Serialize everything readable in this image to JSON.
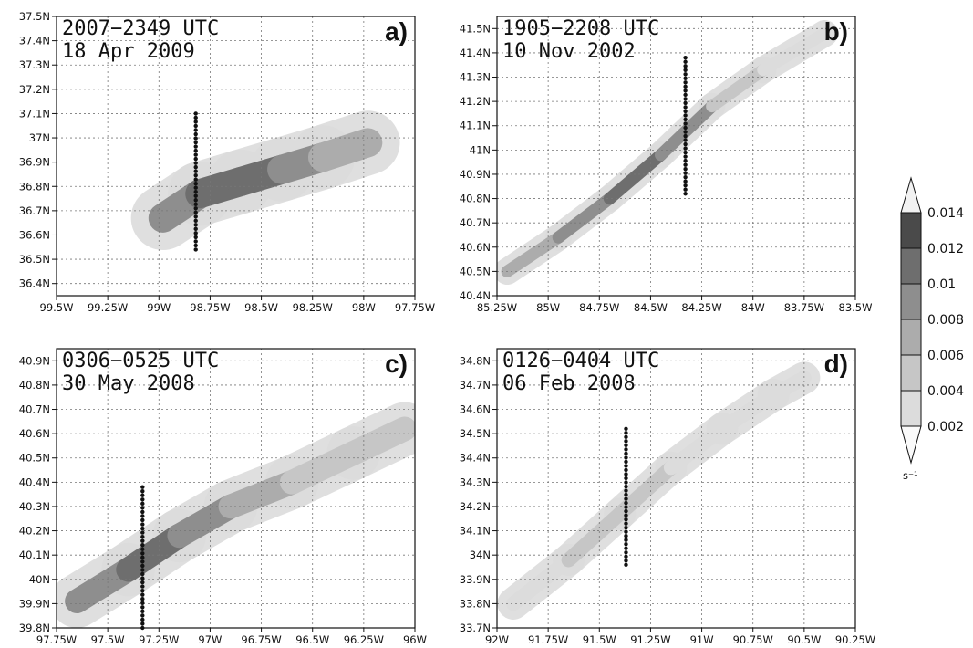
{
  "palette": {
    "levels": [
      0.002,
      0.004,
      0.006,
      0.008,
      0.01,
      0.012,
      0.014
    ],
    "fill_colors": [
      "#ececec",
      "#dcdcdc",
      "#c6c6c6",
      "#acacac",
      "#8e8e8e",
      "#6e6e6e",
      "#4a4a4a",
      "#2e2e2e"
    ]
  },
  "colorbar": {
    "labels": [
      "0.014",
      "0.012",
      "0.01",
      "0.008",
      "0.006",
      "0.004",
      "0.002"
    ],
    "unit": "s⁻¹"
  },
  "panels": [
    {
      "id": "a",
      "title_line1": "2007−2349 UTC",
      "title_line2": "18 Apr 2009",
      "letter": "a)",
      "lon_range": [
        -99.5,
        -97.75
      ],
      "lat_range": [
        36.35,
        37.5
      ],
      "x_ticks": [
        -99.5,
        -99.25,
        -99.0,
        -98.75,
        -98.5,
        -98.25,
        -98.0,
        -97.75
      ],
      "x_labels": [
        "99.5W",
        "99.25W",
        "99W",
        "98.75W",
        "98.5W",
        "98.25W",
        "98W",
        "97.75W"
      ],
      "y_ticks": [
        36.4,
        36.5,
        36.6,
        36.7,
        36.8,
        36.9,
        37.0,
        37.1,
        37.2,
        37.3,
        37.4,
        37.5
      ],
      "y_labels": [
        "36.4N",
        "36.5N",
        "36.6N",
        "36.7N",
        "36.8N",
        "36.9N",
        "37N",
        "37.1N",
        "37.2N",
        "37.3N",
        "37.4N",
        "37.5N"
      ],
      "track": {
        "lon": -98.82,
        "lat_start": 36.54,
        "lat_end": 37.1
      },
      "swath": [
        [
          -98.98,
          36.67
        ],
        [
          -98.8,
          36.77
        ],
        [
          -98.6,
          36.82
        ],
        [
          -98.4,
          36.87
        ],
        [
          -98.2,
          36.92
        ],
        [
          -97.98,
          36.98
        ]
      ],
      "swath_width_deg": 0.12,
      "intensity": [
        0.006,
        0.01,
        0.012,
        0.01,
        0.008,
        0.006
      ]
    },
    {
      "id": "b",
      "title_line1": "1905−2208 UTC",
      "title_line2": "10 Nov 2002",
      "letter": "b)",
      "lon_range": [
        -85.25,
        -83.5
      ],
      "lat_range": [
        40.4,
        41.55
      ],
      "x_ticks": [
        -85.25,
        -85.0,
        -84.75,
        -84.5,
        -84.25,
        -84.0,
        -83.75,
        -83.5
      ],
      "x_labels": [
        "85.25W",
        "85W",
        "84.75W",
        "84.5W",
        "84.25W",
        "84W",
        "83.75W",
        "83.5W"
      ],
      "y_ticks": [
        40.4,
        40.5,
        40.6,
        40.7,
        40.8,
        40.9,
        41.0,
        41.1,
        41.2,
        41.3,
        41.4,
        41.5
      ],
      "y_labels": [
        "40.4N",
        "40.5N",
        "40.6N",
        "40.7N",
        "40.8N",
        "40.9N",
        "41N",
        "41.1N",
        "41.2N",
        "41.3N",
        "41.4N",
        "41.5N"
      ],
      "track": {
        "lon": -84.33,
        "lat_start": 40.82,
        "lat_end": 41.38
      },
      "swath": [
        [
          -85.2,
          40.5
        ],
        [
          -84.95,
          40.64
        ],
        [
          -84.7,
          40.8
        ],
        [
          -84.45,
          40.98
        ],
        [
          -84.2,
          41.18
        ],
        [
          -83.95,
          41.33
        ],
        [
          -83.65,
          41.48
        ]
      ],
      "swath_width_deg": 0.05,
      "intensity": [
        0.004,
        0.008,
        0.01,
        0.01,
        0.006,
        0.004,
        0.002
      ]
    },
    {
      "id": "c",
      "title_line1": "0306−0525 UTC",
      "title_line2": "30 May 2008",
      "letter": "c)",
      "lon_range": [
        -97.75,
        -96.0
      ],
      "lat_range": [
        39.8,
        40.95
      ],
      "x_ticks": [
        -97.75,
        -97.5,
        -97.25,
        -97.0,
        -96.75,
        -96.5,
        -96.25,
        -96.0
      ],
      "x_labels": [
        "97.75W",
        "97.5W",
        "97.25W",
        "97W",
        "96.75W",
        "96.5W",
        "96.25W",
        "96W"
      ],
      "y_ticks": [
        39.8,
        39.9,
        40.0,
        40.1,
        40.2,
        40.3,
        40.4,
        40.5,
        40.6,
        40.7,
        40.8,
        40.9
      ],
      "y_labels": [
        "39.8N",
        "39.9N",
        "40N",
        "40.1N",
        "40.2N",
        "40.3N",
        "40.4N",
        "40.5N",
        "40.6N",
        "40.7N",
        "40.8N",
        "40.9N"
      ],
      "track": {
        "lon": -97.33,
        "lat_start": 39.8,
        "lat_end": 40.38
      },
      "swath": [
        [
          -97.65,
          39.91
        ],
        [
          -97.4,
          40.04
        ],
        [
          -97.15,
          40.18
        ],
        [
          -96.9,
          40.3
        ],
        [
          -96.6,
          40.4
        ],
        [
          -96.3,
          40.52
        ],
        [
          -96.05,
          40.62
        ]
      ],
      "swath_width_deg": 0.1,
      "intensity": [
        0.008,
        0.01,
        0.01,
        0.008,
        0.006,
        0.004,
        0.004
      ]
    },
    {
      "id": "d",
      "title_line1": "0126−0404 UTC",
      "title_line2": "06 Feb 2008",
      "letter": "d)",
      "lon_range": [
        -92.0,
        -90.25
      ],
      "lat_range": [
        33.7,
        34.85
      ],
      "x_ticks": [
        -92.0,
        -91.75,
        -91.5,
        -91.25,
        -91.0,
        -90.75,
        -90.5,
        -90.25
      ],
      "x_labels": [
        "92W",
        "91.75W",
        "91.5W",
        "91.25W",
        "91W",
        "90.75W",
        "90.5W",
        "90.25W"
      ],
      "y_ticks": [
        33.7,
        33.8,
        33.9,
        34.0,
        34.1,
        34.2,
        34.3,
        34.4,
        34.5,
        34.6,
        34.7,
        34.8
      ],
      "y_labels": [
        "33.7N",
        "33.8N",
        "33.9N",
        "34N",
        "34.1N",
        "34.2N",
        "34.3N",
        "34.4N",
        "34.5N",
        "34.6N",
        "34.7N",
        "34.8N"
      ],
      "track": {
        "lon": -91.37,
        "lat_start": 33.96,
        "lat_end": 34.52
      },
      "swath": [
        [
          -91.92,
          33.8
        ],
        [
          -91.65,
          33.98
        ],
        [
          -91.4,
          34.17
        ],
        [
          -91.15,
          34.36
        ],
        [
          -90.9,
          34.52
        ],
        [
          -90.65,
          34.66
        ],
        [
          -90.5,
          34.73
        ]
      ],
      "swath_width_deg": 0.06,
      "intensity": [
        0.002,
        0.004,
        0.004,
        0.004,
        0.002,
        0.002,
        0.002
      ]
    }
  ]
}
